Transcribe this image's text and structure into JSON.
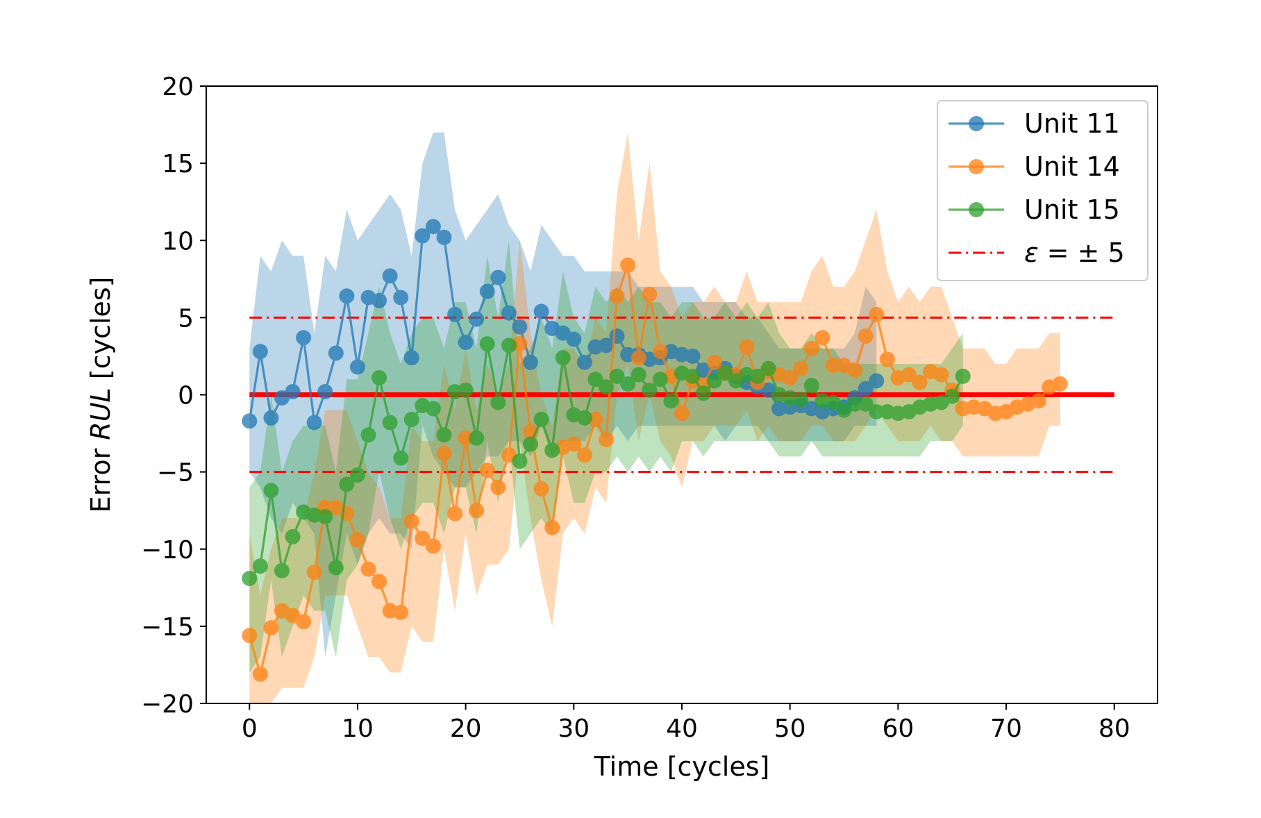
{
  "chart_data": {
    "type": "line",
    "xlabel": "Time [cycles]",
    "ylabel_prefix": "Error ",
    "ylabel_var": "RUL",
    "ylabel_suffix": " [cycles]",
    "xlim": [
      -4,
      84
    ],
    "ylim": [
      -20,
      20
    ],
    "xticks": [
      0,
      10,
      20,
      30,
      40,
      50,
      60,
      70,
      80
    ],
    "yticks": [
      -20,
      -15,
      -10,
      -5,
      0,
      5,
      10,
      15,
      20
    ],
    "grid": false,
    "legend_position": "top-right",
    "reference_lines": [
      {
        "type": "solid",
        "y": 0,
        "x_range": [
          0,
          80
        ],
        "color": "#ff0000"
      },
      {
        "type": "dashdot",
        "y": 5,
        "x_range": [
          0,
          80
        ],
        "color": "#ff0000"
      },
      {
        "type": "dashdot",
        "y": -5,
        "x_range": [
          0,
          80
        ],
        "color": "#ff0000"
      }
    ],
    "series": [
      {
        "name": "Unit 11",
        "color": "#1f77b4",
        "x_start": 0,
        "values": [
          -1.7,
          2.8,
          -1.5,
          -0.2,
          0.2,
          3.7,
          -1.8,
          0.2,
          2.7,
          6.4,
          1.8,
          6.3,
          6.1,
          7.7,
          6.3,
          2.4,
          10.3,
          10.9,
          10.2,
          5.2,
          3.4,
          4.9,
          6.7,
          7.6,
          5.3,
          4.4,
          2.1,
          5.4,
          4.3,
          4.0,
          3.6,
          2.1,
          3.1,
          3.2,
          3.8,
          2.6,
          2.6,
          2.3,
          2.4,
          2.8,
          2.6,
          2.5,
          1.6,
          1.4,
          1.7,
          1.2,
          0.8,
          0.5,
          0.3,
          -0.9,
          -0.8,
          -0.7,
          -0.9,
          -1.1,
          -0.9,
          -0.8,
          -0.2,
          0.4,
          0.9
        ],
        "lower": [
          -5,
          -6,
          -8,
          -9,
          -7,
          -8,
          -9,
          -17,
          -13,
          -9,
          -11,
          -9,
          -8,
          -9,
          -9,
          -10,
          -2,
          -4,
          -5,
          -6,
          -6,
          -5,
          -4,
          -4,
          -3,
          -3,
          -4,
          -2,
          -4,
          -3,
          -3,
          -3,
          -2,
          -3,
          -2,
          -3,
          -2,
          -2,
          -2,
          -2,
          -2,
          -2,
          -2,
          -2,
          -3,
          -2,
          -2,
          -2,
          -3,
          -3,
          -3,
          -3,
          -3,
          -3,
          -3,
          -3,
          -2,
          -2,
          -2
        ],
        "upper": [
          3,
          9,
          8,
          10,
          9,
          9,
          4,
          9,
          8,
          12,
          10,
          11,
          12,
          13,
          12,
          9,
          15,
          17,
          17,
          12,
          10,
          11,
          12,
          13,
          11,
          10,
          8,
          11,
          10,
          9,
          9,
          8,
          8,
          8,
          8,
          8,
          7,
          7,
          7,
          7,
          7,
          7,
          6,
          6,
          6,
          6,
          5,
          5,
          4,
          3,
          3,
          3,
          3,
          3,
          3,
          3,
          4,
          7,
          6
        ]
      },
      {
        "name": "Unit 14",
        "color": "#ff7f0e",
        "x_start": 0,
        "values": [
          -15.6,
          -18.1,
          -15.1,
          -14.0,
          -14.3,
          -14.7,
          -11.5,
          -7.3,
          -7.3,
          -7.7,
          -9.4,
          -11.3,
          -12.1,
          -14.0,
          -14.1,
          -8.2,
          -9.3,
          -9.8,
          -3.8,
          -7.7,
          -2.8,
          -7.5,
          -4.9,
          -6.0,
          -3.9,
          3.3,
          -2.4,
          -6.1,
          -8.6,
          -3.4,
          -3.2,
          -3.9,
          -1.6,
          -2.9,
          6.4,
          8.4,
          2.4,
          6.5,
          2.8,
          1.2,
          -1.2,
          0.9,
          0.6,
          2.1,
          1.4,
          1.3,
          3.1,
          0.8,
          1.5,
          1.3,
          1.1,
          1.7,
          3.0,
          3.7,
          1.9,
          1.9,
          1.6,
          3.8,
          5.2,
          2.3,
          1.1,
          1.3,
          0.8,
          1.5,
          1.3,
          0.3,
          -0.9,
          -0.8,
          -0.9,
          -1.2,
          -1.1,
          -0.8,
          -0.6,
          -0.4,
          0.5,
          0.7
        ],
        "lower": [
          -20,
          -20,
          -20,
          -19,
          -19,
          -19,
          -17,
          -13,
          -13,
          -13,
          -15,
          -17,
          -17,
          -18,
          -18,
          -15,
          -16,
          -16,
          -10,
          -14,
          -9,
          -13,
          -11,
          -11,
          -10,
          -3,
          -8,
          -12,
          -15,
          -9,
          -8,
          -9,
          -6,
          -7,
          0,
          2,
          -3,
          0,
          -3,
          -4,
          -6,
          -3,
          -3,
          -2,
          -2,
          -2,
          -1,
          -3,
          -2,
          -3,
          -3,
          -3,
          -2,
          -2,
          -3,
          -3,
          -3,
          -2,
          -1,
          -2,
          -3,
          -3,
          -3,
          -2,
          -3,
          -3,
          -4,
          -4,
          -4,
          -4,
          -4,
          -4,
          -4,
          -4,
          -2,
          -2
        ],
        "upper": [
          -9,
          -13,
          -10,
          -8,
          -8,
          -8,
          -5,
          -1,
          -1,
          -1,
          -3,
          -5,
          -6,
          -8,
          -8,
          -2,
          -3,
          -3,
          2,
          -1,
          3,
          -1,
          2,
          0,
          2,
          10,
          4,
          0,
          -2,
          3,
          3,
          2,
          5,
          4,
          13,
          17,
          10,
          15,
          8,
          7,
          5,
          6,
          6,
          7,
          6,
          6,
          8,
          6,
          6,
          6,
          6,
          6,
          8,
          9,
          7,
          7,
          8,
          10,
          12,
          8,
          6,
          7,
          6,
          7,
          7,
          5,
          3,
          3,
          3,
          2,
          2,
          3,
          3,
          3,
          4,
          4
        ]
      },
      {
        "name": "Unit 15",
        "color": "#2ca02c",
        "x_start": 0,
        "values": [
          -11.9,
          -11.1,
          -6.2,
          -11.4,
          -9.2,
          -7.6,
          -7.8,
          -7.9,
          -11.2,
          -5.8,
          -5.2,
          -2.6,
          1.1,
          -1.8,
          -4.1,
          -1.6,
          -0.7,
          -0.9,
          -2.6,
          0.2,
          0.3,
          -2.8,
          3.3,
          -0.5,
          3.2,
          -4.3,
          -3.2,
          -1.6,
          -3.6,
          2.4,
          -1.3,
          -1.5,
          1.0,
          0.5,
          1.2,
          0.7,
          1.3,
          0.3,
          1.0,
          -0.4,
          1.4,
          1.2,
          0.1,
          0.9,
          1.4,
          0.9,
          1.3,
          1.2,
          1.7,
          0.0,
          -0.2,
          -0.3,
          0.6,
          -0.4,
          -0.5,
          -1.0,
          -0.6,
          -0.6,
          -1.1,
          -1.1,
          -1.2,
          -1.1,
          -0.8,
          -0.6,
          -0.5,
          -0.1,
          1.2
        ],
        "lower": [
          -18,
          -17,
          -12,
          -17,
          -15,
          -13,
          -14,
          -14,
          -17,
          -12,
          -11,
          -9,
          -5,
          -8,
          -10,
          -8,
          -7,
          -7,
          -9,
          -6,
          -6,
          -9,
          -3,
          -7,
          -3,
          -10,
          -9,
          -8,
          -9,
          -4,
          -7,
          -7,
          -5,
          -5,
          -4,
          -5,
          -4,
          -5,
          -4,
          -5,
          -3,
          -3,
          -4,
          -3,
          -3,
          -3,
          -3,
          -3,
          -3,
          -4,
          -4,
          -4,
          -3,
          -4,
          -4,
          -4,
          -4,
          -4,
          -4,
          -4,
          -4,
          -4,
          -4,
          -3,
          -3,
          -3,
          -2
        ],
        "upper": [
          -6,
          -5,
          0,
          -5,
          -3,
          -2,
          -2,
          -2,
          -5,
          1,
          1,
          4,
          7,
          4,
          2,
          4,
          5,
          5,
          3,
          6,
          6,
          3,
          9,
          5,
          10,
          2,
          3,
          5,
          3,
          8,
          5,
          4,
          7,
          6,
          7,
          6,
          7,
          6,
          6,
          5,
          6,
          6,
          5,
          5,
          6,
          5,
          6,
          5,
          6,
          4,
          3,
          3,
          4,
          3,
          3,
          2,
          2,
          2,
          2,
          2,
          2,
          2,
          2,
          2,
          2,
          3,
          4
        ]
      }
    ],
    "legend": {
      "entries": [
        "Unit 11",
        "Unit 14",
        "Unit 15"
      ],
      "epsilon_symbol": "ε",
      "epsilon_rest": " =  ± 5"
    }
  }
}
